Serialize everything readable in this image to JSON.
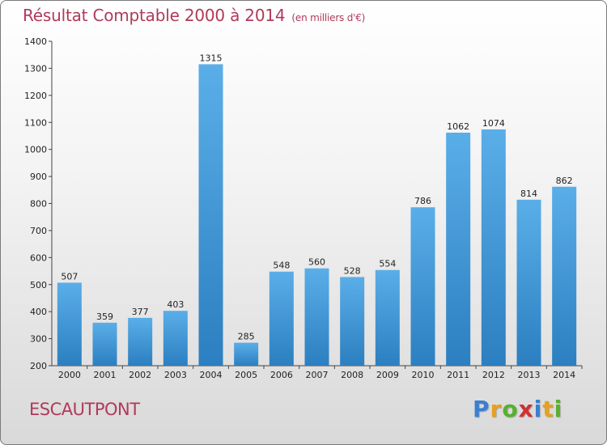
{
  "title": {
    "main": "Résultat Comptable 2000 à 2014",
    "unit": "(en milliers d'€)"
  },
  "commune": "ESCAUTPONT",
  "logo": {
    "text": "Proxiti",
    "letters": [
      {
        "ch": "P",
        "color": "#3a7fd0"
      },
      {
        "ch": "r",
        "color": "#e8a020"
      },
      {
        "ch": "o",
        "color": "#58b030"
      },
      {
        "ch": "x",
        "color": "#d03030"
      },
      {
        "ch": "i",
        "color": "#3a7fd0"
      },
      {
        "ch": "t",
        "color": "#e8a020"
      },
      {
        "ch": "i",
        "color": "#58b030"
      }
    ]
  },
  "colors": {
    "title": "#b03a5b",
    "bar_light": "#5aaee8",
    "bar_dark": "#2c7fc0"
  },
  "chart_data": {
    "type": "bar",
    "title": "Résultat Comptable 2000 à 2014",
    "subtitle": "(en milliers d'€)",
    "categories": [
      "2000",
      "2001",
      "2002",
      "2003",
      "2004",
      "2005",
      "2006",
      "2007",
      "2008",
      "2009",
      "2010",
      "2011",
      "2012",
      "2013",
      "2014"
    ],
    "values": [
      507,
      359,
      377,
      403,
      1315,
      285,
      548,
      560,
      528,
      554,
      786,
      1062,
      1074,
      814,
      862
    ],
    "ylim": [
      200,
      1400
    ],
    "yticks": [
      200,
      300,
      400,
      500,
      600,
      700,
      800,
      900,
      1000,
      1100,
      1200,
      1300,
      1400
    ],
    "grid": false,
    "data_labels": true
  }
}
